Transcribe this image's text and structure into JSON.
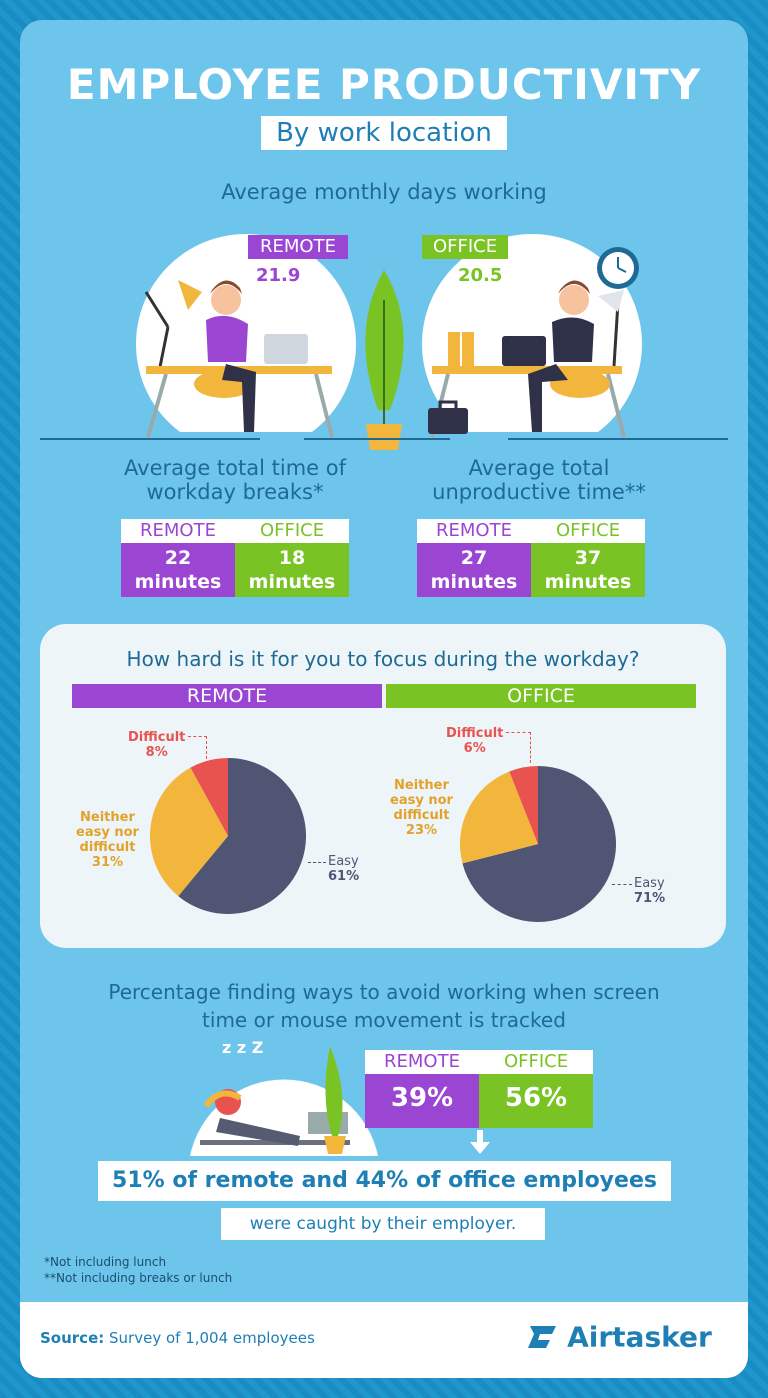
{
  "header": {
    "title": "EMPLOYEE PRODUCTIVITY",
    "subtitle": "By work location"
  },
  "days": {
    "heading": "Average monthly days working",
    "remote_label": "REMOTE",
    "remote_value": "21.9",
    "office_label": "OFFICE",
    "office_value": "20.5"
  },
  "breaks": {
    "heading_line1": "Average total time of",
    "heading_line2": "workday breaks*",
    "remote_label": "REMOTE",
    "office_label": "OFFICE",
    "remote_num": "22",
    "remote_unit": "minutes",
    "office_num": "18",
    "office_unit": "minutes"
  },
  "unproductive": {
    "heading_line1": "Average total",
    "heading_line2": "unproductive time**",
    "remote_label": "REMOTE",
    "office_label": "OFFICE",
    "remote_num": "27",
    "remote_unit": "minutes",
    "office_num": "37",
    "office_unit": "minutes"
  },
  "focus": {
    "question": "How hard is it for you to focus during the workday?",
    "remote_bar": "REMOTE",
    "office_bar": "OFFICE"
  },
  "tracking": {
    "heading_line1": "Percentage finding ways to avoid working when screen",
    "heading_line2": "time or mouse movement is tracked",
    "remote_label": "REMOTE",
    "office_label": "OFFICE",
    "remote_value": "39%",
    "office_value": "56%",
    "sleep_text": "z z Z",
    "caught_line1": "51% of remote and 44% of office employees",
    "caught_line2": "were caught by their employer."
  },
  "notes": {
    "note1": "*Not including lunch",
    "note2": "**Not including breaks or lunch"
  },
  "footer": {
    "source_label": "Source:",
    "source_text": "Survey of 1,004 employees",
    "brand": "Airtasker"
  },
  "colors": {
    "remote": "#9b45d3",
    "office": "#79c324",
    "easy": "#4f5573",
    "neither": "#f2b63c",
    "difficult": "#e9534f"
  },
  "chart_data": [
    {
      "type": "pie",
      "title": "REMOTE",
      "categories": [
        "Easy",
        "Neither easy nor difficult",
        "Difficult"
      ],
      "values": [
        61,
        31,
        8
      ],
      "labels": {
        "easy_name": "Easy",
        "easy_pct": "61%",
        "neither_l1": "Neither",
        "neither_l2": "easy nor",
        "neither_l3": "difficult",
        "neither_pct": "31%",
        "difficult_name": "Difficult",
        "difficult_pct": "8%"
      }
    },
    {
      "type": "pie",
      "title": "OFFICE",
      "categories": [
        "Easy",
        "Neither easy nor difficult",
        "Difficult"
      ],
      "values": [
        71,
        23,
        6
      ],
      "labels": {
        "easy_name": "Easy",
        "easy_pct": "71%",
        "neither_l1": "Neither",
        "neither_l2": "easy nor",
        "neither_l3": "difficult",
        "neither_pct": "23%",
        "difficult_name": "Difficult",
        "difficult_pct": "6%"
      }
    },
    {
      "type": "bar",
      "title": "Average monthly days working",
      "categories": [
        "REMOTE",
        "OFFICE"
      ],
      "values": [
        21.9,
        20.5
      ]
    },
    {
      "type": "bar",
      "title": "Average total time of workday breaks*",
      "categories": [
        "REMOTE",
        "OFFICE"
      ],
      "values": [
        22,
        18
      ]
    },
    {
      "type": "bar",
      "title": "Average total unproductive time**",
      "categories": [
        "REMOTE",
        "OFFICE"
      ],
      "values": [
        27,
        37
      ]
    },
    {
      "type": "bar",
      "title": "Percentage finding ways to avoid working when screen time or mouse movement is tracked",
      "categories": [
        "REMOTE",
        "OFFICE"
      ],
      "values": [
        39,
        56
      ]
    }
  ]
}
